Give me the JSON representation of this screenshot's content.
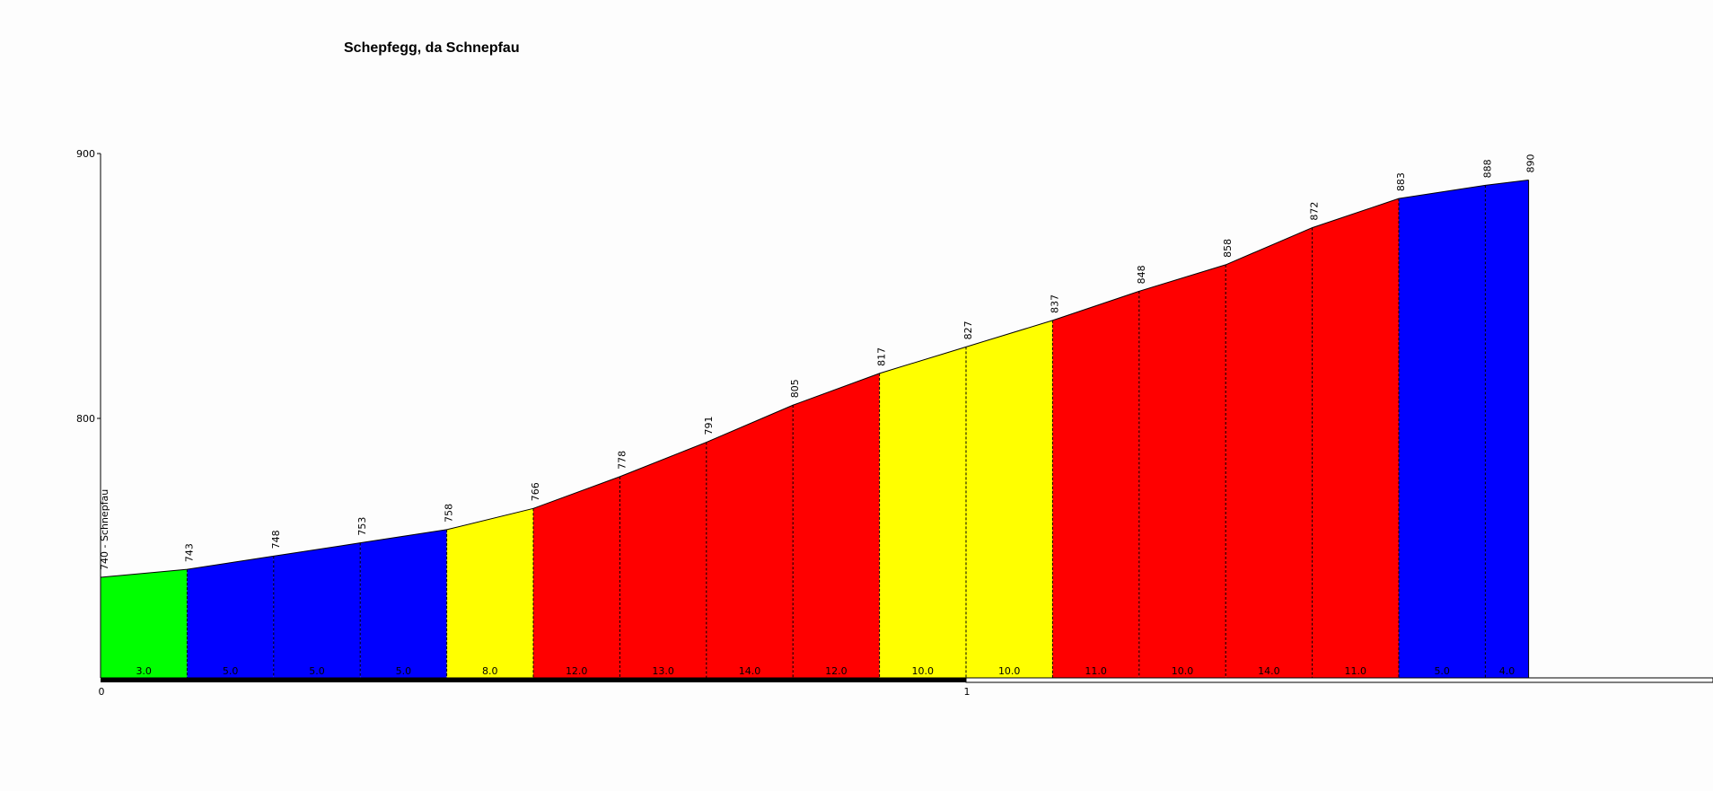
{
  "chart_data": {
    "type": "area",
    "title": "Schepfegg, da Schnepfau",
    "xlabel": "",
    "ylabel": "",
    "x_unit_ticks": [
      {
        "x": 0,
        "label": "0"
      },
      {
        "x": 1,
        "label": "1"
      }
    ],
    "y_ticks": [
      {
        "y": 800,
        "label": "800"
      },
      {
        "y": 900,
        "label": "900"
      }
    ],
    "ylim": [
      700,
      900
    ],
    "xlim": [
      0,
      1.65
    ],
    "start_label": "740 - Schnepfau",
    "points": [
      {
        "x": 0.0,
        "elev": 740,
        "label": ""
      },
      {
        "x": 0.1,
        "elev": 743,
        "label": "743"
      },
      {
        "x": 0.2,
        "elev": 748,
        "label": "748"
      },
      {
        "x": 0.3,
        "elev": 753,
        "label": "753"
      },
      {
        "x": 0.4,
        "elev": 758,
        "label": "758"
      },
      {
        "x": 0.5,
        "elev": 766,
        "label": "766"
      },
      {
        "x": 0.6,
        "elev": 778,
        "label": "778"
      },
      {
        "x": 0.7,
        "elev": 791,
        "label": "791"
      },
      {
        "x": 0.8,
        "elev": 805,
        "label": "805"
      },
      {
        "x": 0.9,
        "elev": 817,
        "label": "817"
      },
      {
        "x": 1.0,
        "elev": 827,
        "label": "827"
      },
      {
        "x": 1.1,
        "elev": 837,
        "label": "837"
      },
      {
        "x": 1.2,
        "elev": 848,
        "label": "848"
      },
      {
        "x": 1.3,
        "elev": 858,
        "label": "858"
      },
      {
        "x": 1.4,
        "elev": 872,
        "label": "872"
      },
      {
        "x": 1.5,
        "elev": 883,
        "label": "883"
      },
      {
        "x": 1.6,
        "elev": 888,
        "label": "888"
      },
      {
        "x": 1.65,
        "elev": 890,
        "label": "890"
      }
    ],
    "segments": [
      {
        "gradient": "3.0",
        "color": "#00ff00"
      },
      {
        "gradient": "5.0",
        "color": "#0000ff"
      },
      {
        "gradient": "5.0",
        "color": "#0000ff"
      },
      {
        "gradient": "5.0",
        "color": "#0000ff"
      },
      {
        "gradient": "8.0",
        "color": "#ffff00"
      },
      {
        "gradient": "12.0",
        "color": "#ff0000"
      },
      {
        "gradient": "13.0",
        "color": "#ff0000"
      },
      {
        "gradient": "14.0",
        "color": "#ff0000"
      },
      {
        "gradient": "12.0",
        "color": "#ff0000"
      },
      {
        "gradient": "10.0",
        "color": "#ffff00"
      },
      {
        "gradient": "10.0",
        "color": "#ffff00"
      },
      {
        "gradient": "11.0",
        "color": "#ff0000"
      },
      {
        "gradient": "10.0",
        "color": "#ff0000"
      },
      {
        "gradient": "14.0",
        "color": "#ff0000"
      },
      {
        "gradient": "11.0",
        "color": "#ff0000"
      },
      {
        "gradient": "5.0",
        "color": "#0000ff"
      },
      {
        "gradient": "4.0",
        "color": "#0000ff"
      }
    ],
    "grid": false
  }
}
